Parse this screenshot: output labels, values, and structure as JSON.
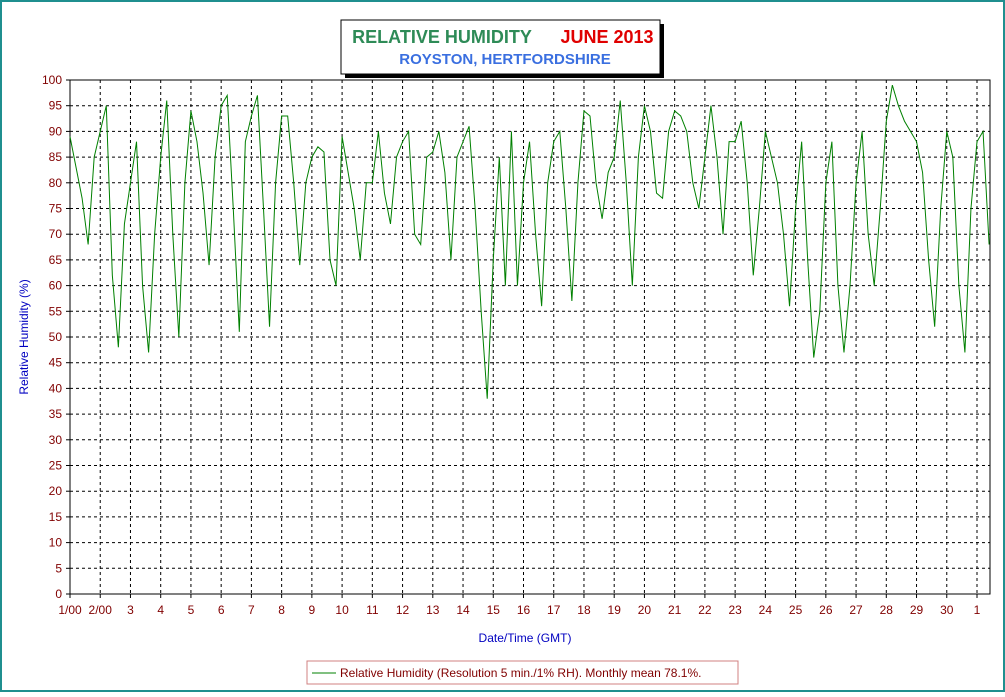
{
  "chart_data": {
    "type": "line",
    "title": "RELATIVE HUMIDITY",
    "title_date": "JUNE 2013",
    "subtitle": "ROYSTON, HERTFORDSHIRE",
    "x_label": "Date/Time (GMT)",
    "y_label": "Relative Humidity (%)",
    "xlim": [
      0,
      30.43
    ],
    "ylim": [
      0,
      100
    ],
    "yticks": [
      0,
      5,
      10,
      15,
      20,
      25,
      30,
      35,
      40,
      45,
      50,
      55,
      60,
      65,
      70,
      75,
      80,
      85,
      90,
      95,
      100
    ],
    "xticks": [
      {
        "value": 0,
        "label": "1/00"
      },
      {
        "value": 1,
        "label": "2/00"
      },
      {
        "value": 2,
        "label": "3"
      },
      {
        "value": 3,
        "label": "4"
      },
      {
        "value": 4,
        "label": "5"
      },
      {
        "value": 5,
        "label": "6"
      },
      {
        "value": 6,
        "label": "7"
      },
      {
        "value": 7,
        "label": "8"
      },
      {
        "value": 8,
        "label": "9"
      },
      {
        "value": 9,
        "label": "10"
      },
      {
        "value": 10,
        "label": "11"
      },
      {
        "value": 11,
        "label": "12"
      },
      {
        "value": 12,
        "label": "13"
      },
      {
        "value": 13,
        "label": "14"
      },
      {
        "value": 14,
        "label": "15"
      },
      {
        "value": 15,
        "label": "16"
      },
      {
        "value": 16,
        "label": "17"
      },
      {
        "value": 17,
        "label": "18"
      },
      {
        "value": 18,
        "label": "19"
      },
      {
        "value": 19,
        "label": "20"
      },
      {
        "value": 20,
        "label": "21"
      },
      {
        "value": 21,
        "label": "22"
      },
      {
        "value": 22,
        "label": "23"
      },
      {
        "value": 23,
        "label": "24"
      },
      {
        "value": 24,
        "label": "25"
      },
      {
        "value": 25,
        "label": "26"
      },
      {
        "value": 26,
        "label": "27"
      },
      {
        "value": 27,
        "label": "28"
      },
      {
        "value": 28,
        "label": "29"
      },
      {
        "value": 29,
        "label": "30"
      },
      {
        "value": 30,
        "label": "1"
      }
    ],
    "grid": true,
    "x": [
      0,
      0.2,
      0.4,
      0.6,
      0.8,
      1,
      1.2,
      1.4,
      1.6,
      1.8,
      2,
      2.2,
      2.4,
      2.6,
      2.8,
      3,
      3.2,
      3.4,
      3.6,
      3.8,
      4,
      4.2,
      4.4,
      4.6,
      4.8,
      5,
      5.2,
      5.4,
      5.6,
      5.8,
      6,
      6.2,
      6.4,
      6.6,
      6.8,
      7,
      7.2,
      7.4,
      7.6,
      7.8,
      8,
      8.2,
      8.4,
      8.6,
      8.8,
      9,
      9.2,
      9.4,
      9.6,
      9.8,
      10,
      10.2,
      10.4,
      10.6,
      10.8,
      11,
      11.2,
      11.4,
      11.6,
      11.8,
      12,
      12.2,
      12.4,
      12.6,
      12.8,
      13,
      13.2,
      13.4,
      13.6,
      13.8,
      14,
      14.2,
      14.4,
      14.6,
      14.8,
      15,
      15.2,
      15.4,
      15.6,
      15.8,
      16,
      16.2,
      16.4,
      16.6,
      16.8,
      17,
      17.2,
      17.4,
      17.6,
      17.8,
      18,
      18.2,
      18.4,
      18.6,
      18.8,
      19,
      19.2,
      19.4,
      19.6,
      19.8,
      20,
      20.2,
      20.4,
      20.6,
      20.8,
      21,
      21.2,
      21.4,
      21.6,
      21.8,
      22,
      22.2,
      22.4,
      22.6,
      22.8,
      23,
      23.2,
      23.4,
      23.6,
      23.8,
      24,
      24.2,
      24.4,
      24.6,
      24.8,
      25,
      25.2,
      25.4,
      25.6,
      25.8,
      26,
      26.2,
      26.4,
      26.6,
      26.8,
      27,
      27.2,
      27.4,
      27.6,
      27.8,
      28,
      28.2,
      28.4,
      28.6,
      28.8,
      29,
      29.2,
      29.4,
      29.6,
      29.8,
      30,
      30.2,
      30.4
    ],
    "series": [
      {
        "name": "Relative Humidity (Resolution 5 min./1% RH). Monthly mean 78.1%.",
        "color": "#008000",
        "values": [
          89,
          83,
          77,
          68,
          85,
          90,
          95,
          62,
          48,
          72,
          80,
          88,
          60,
          47,
          70,
          85,
          96,
          70,
          50,
          80,
          94,
          88,
          78,
          64,
          85,
          95,
          97,
          75,
          51,
          88,
          93,
          97,
          75,
          52,
          80,
          93,
          93,
          80,
          64,
          80,
          85,
          87,
          86,
          65,
          60,
          89,
          82,
          75,
          65,
          80,
          80,
          90,
          78,
          72,
          85,
          88,
          90,
          70,
          68,
          85,
          86,
          90,
          82,
          65,
          85,
          88,
          91,
          75,
          55,
          38,
          65,
          85,
          60,
          90,
          60,
          80,
          88,
          70,
          56,
          80,
          88,
          90,
          75,
          57,
          80,
          94,
          93,
          80,
          73,
          82,
          85,
          96,
          80,
          60,
          85,
          95,
          90,
          78,
          77,
          90,
          94,
          93,
          90,
          80,
          75,
          85,
          95,
          85,
          70,
          88,
          88,
          92,
          80,
          62,
          75,
          90,
          85,
          80,
          70,
          56,
          75,
          88,
          65,
          46,
          55,
          80,
          88,
          60,
          47,
          60,
          80,
          90,
          70,
          60,
          75,
          92,
          99,
          95,
          92,
          90,
          88,
          82,
          65,
          52,
          75,
          90,
          85,
          60,
          47,
          75,
          88,
          90,
          68
        ]
      }
    ]
  }
}
